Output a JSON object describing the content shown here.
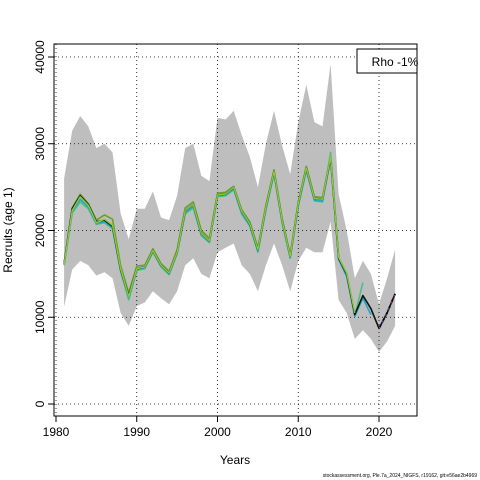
{
  "chart_data": {
    "type": "line",
    "title": "",
    "xlabel": "Years",
    "ylabel": "Recruits (age 1)",
    "xlim": [
      1980,
      2024
    ],
    "ylim": [
      0,
      40000
    ],
    "x_ticks": [
      1980,
      1990,
      2000,
      2010,
      2020
    ],
    "y_ticks": [
      0,
      10000,
      20000,
      30000,
      40000
    ],
    "grid": true,
    "legend_text": "Rho -1%",
    "legend_position": "top-right",
    "footer": "stockassessment.org, Ple.7a_2024_NIGFS, r19162, git:e56ae2b4969",
    "colors": {
      "band": "#bebebe",
      "main_line": "#111111",
      "retro": [
        "#2a2aa6",
        "#1fa7c9",
        "#4cc27d",
        "#8fc83c",
        "#6f9f2a"
      ],
      "grid": "#000000"
    },
    "x": [
      1981,
      1982,
      1983,
      1984,
      1985,
      1986,
      1987,
      1988,
      1989,
      1990,
      1991,
      1992,
      1993,
      1994,
      1995,
      1996,
      1997,
      1998,
      1999,
      2000,
      2001,
      2002,
      2003,
      2004,
      2005,
      2006,
      2007,
      2008,
      2009,
      2010,
      2011,
      2012,
      2013,
      2014,
      2015,
      2016,
      2017,
      2018,
      2019,
      2020,
      2021,
      2022
    ],
    "band_upper": [
      26000,
      31500,
      33200,
      32000,
      29500,
      30000,
      29000,
      22000,
      19000,
      22500,
      22500,
      24500,
      21500,
      21200,
      24000,
      29500,
      30000,
      26300,
      25700,
      33000,
      32800,
      33800,
      31000,
      28500,
      25000,
      30000,
      33800,
      29800,
      26500,
      32500,
      36800,
      32500,
      32000,
      39200,
      24200,
      20000,
      14500,
      16500,
      15000,
      11500,
      14500,
      17800
    ],
    "band_lower": [
      11200,
      15500,
      16500,
      16000,
      14800,
      15200,
      14500,
      10500,
      9000,
      11300,
      11700,
      13000,
      12200,
      11500,
      13000,
      16000,
      16800,
      15000,
      14500,
      17500,
      18000,
      18500,
      16000,
      15000,
      13000,
      16000,
      18500,
      16000,
      13000,
      16500,
      18000,
      17500,
      17500,
      21000,
      12000,
      10500,
      7500,
      8500,
      7500,
      6000,
      7200,
      9000
    ],
    "series": [
      {
        "values": [
          16200,
          22500,
          24000,
          23000,
          21000,
          21200,
          20500,
          15500,
          12500,
          15600,
          15800,
          17700,
          16000,
          15100,
          17500,
          22300,
          23000,
          19700,
          18800,
          24100,
          24200,
          25000,
          22200,
          20800,
          17800,
          22700,
          26800,
          21200,
          17000,
          23100,
          27200,
          23700,
          23600,
          28400,
          16800,
          15000,
          10300,
          12500,
          11000,
          8700,
          10500,
          12700
        ]
      },
      {
        "values": [
          16100,
          22200,
          23600,
          22700,
          20800,
          21000,
          20300,
          15400,
          12300,
          15500,
          15700,
          17600,
          15900,
          15000,
          17400,
          22100,
          22800,
          19500,
          18700,
          24000,
          24100,
          24800,
          22000,
          20600,
          17600,
          22500,
          26600,
          21000,
          16900,
          22900,
          27000,
          23500,
          23400,
          28200,
          16700,
          14700,
          10100,
          12200,
          10300,
          null,
          null,
          null
        ]
      },
      {
        "values": [
          16000,
          22000,
          23300,
          22500,
          20700,
          20900,
          20200,
          15300,
          12000,
          15400,
          15600,
          17500,
          15800,
          14900,
          17300,
          21900,
          22600,
          19400,
          18600,
          23900,
          24000,
          24700,
          21900,
          20500,
          17500,
          22400,
          26500,
          20900,
          16800,
          22800,
          26900,
          23400,
          23300,
          29000,
          16900,
          15000,
          10200,
          14000,
          null,
          null,
          null,
          null
        ]
      },
      {
        "values": [
          16100,
          22300,
          23900,
          22900,
          20900,
          21300,
          20600,
          15600,
          12400,
          15600,
          15800,
          17700,
          16000,
          15100,
          17500,
          22300,
          23000,
          19700,
          18800,
          24100,
          24200,
          25000,
          22200,
          20800,
          17800,
          22700,
          26800,
          21200,
          17000,
          23100,
          27200,
          23700,
          23600,
          28500,
          16900,
          15100,
          10500,
          null,
          null,
          null,
          null,
          null
        ]
      },
      {
        "values": [
          16200,
          22600,
          24200,
          23100,
          21200,
          21800,
          21300,
          16000,
          12800,
          15900,
          16000,
          17900,
          16200,
          15300,
          17800,
          22600,
          23300,
          20000,
          19100,
          24300,
          24400,
          25100,
          22400,
          21000,
          18000,
          22900,
          27000,
          21400,
          17200,
          23300,
          27400,
          23900,
          23800,
          28700,
          17100,
          null,
          null,
          null,
          null,
          null,
          null,
          null
        ]
      }
    ],
    "projection": {
      "x": [
        2020,
        2021,
        2022
      ],
      "values": [
        8700,
        10500,
        12700
      ]
    }
  }
}
